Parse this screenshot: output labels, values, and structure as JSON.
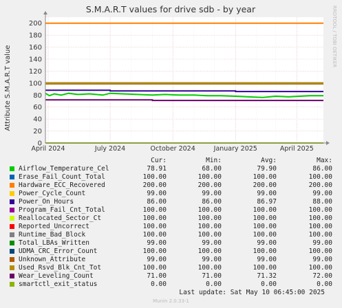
{
  "chart_data": {
    "type": "line",
    "title": "S.M.A.R.T values for drive sdb - by year",
    "ylabel": "Attribute S.M.A.R.T value",
    "side_label": "RRDTOOL / TOBI OETIKER",
    "ylim": [
      0,
      210
    ],
    "yticks": [
      0,
      20,
      40,
      60,
      80,
      100,
      120,
      140,
      160,
      180,
      200
    ],
    "xlim": [
      "2024-03-28",
      "2025-05-10"
    ],
    "xticks": [
      {
        "date": "2024-04-01",
        "label": "April 2024"
      },
      {
        "date": "2024-07-01",
        "label": "July 2024"
      },
      {
        "date": "2024-10-01",
        "label": "October 2024"
      },
      {
        "date": "2025-01-01",
        "label": "January 2025"
      },
      {
        "date": "2025-04-01",
        "label": "April 2025"
      }
    ],
    "grid": true,
    "columns": [
      "Cur:",
      "Min:",
      "Avg:",
      "Max:"
    ],
    "series": [
      {
        "name": "Airflow_Temperature_Cel",
        "color": "#00cc00",
        "stats": [
          "78.91",
          "68.00",
          "79.90",
          "86.00"
        ],
        "x": [
          "2024-03-28",
          "2024-04-03",
          "2024-04-10",
          "2024-04-20",
          "2024-05-01",
          "2024-05-15",
          "2024-06-01",
          "2024-06-20",
          "2024-07-01",
          "2024-07-20",
          "2024-08-10",
          "2024-09-01",
          "2024-09-20",
          "2024-10-10",
          "2024-11-01",
          "2024-11-20",
          "2024-12-10",
          "2025-01-01",
          "2025-01-20",
          "2025-02-10",
          "2025-03-01",
          "2025-03-20",
          "2025-04-05",
          "2025-04-20",
          "2025-05-10"
        ],
        "y": [
          83,
          79,
          82,
          80,
          83,
          81,
          82,
          80,
          83,
          82,
          81,
          80,
          81,
          80,
          80,
          79,
          79,
          78,
          77,
          76,
          78,
          77,
          78,
          79,
          79
        ]
      },
      {
        "name": "Erase_Fail_Count_Total",
        "color": "#0066b3",
        "stats": [
          "100.00",
          "100.00",
          "100.00",
          "100.00"
        ],
        "x": [
          "2024-03-28",
          "2025-05-10"
        ],
        "y": [
          100,
          100
        ]
      },
      {
        "name": "Hardware_ECC_Recovered",
        "color": "#ff8000",
        "stats": [
          "200.00",
          "200.00",
          "200.00",
          "200.00"
        ],
        "x": [
          "2024-03-28",
          "2025-05-10"
        ],
        "y": [
          200,
          200
        ]
      },
      {
        "name": "Power_Cycle_Count",
        "color": "#ffcc00",
        "stats": [
          "99.00",
          "99.00",
          "99.00",
          "99.00"
        ],
        "x": [
          "2024-03-28",
          "2025-05-10"
        ],
        "y": [
          99,
          99
        ]
      },
      {
        "name": "Power_On_Hours",
        "color": "#330099",
        "stats": [
          "86.00",
          "86.00",
          "86.97",
          "88.00"
        ],
        "x": [
          "2024-03-28",
          "2024-07-01",
          "2024-07-01",
          "2025-01-01",
          "2025-01-01",
          "2025-05-10"
        ],
        "y": [
          88,
          88,
          87,
          87,
          86,
          86
        ]
      },
      {
        "name": "Program_Fail_Cnt_Total",
        "color": "#990099",
        "stats": [
          "100.00",
          "100.00",
          "100.00",
          "100.00"
        ],
        "x": [
          "2024-03-28",
          "2025-05-10"
        ],
        "y": [
          100,
          100
        ]
      },
      {
        "name": "Reallocated_Sector_Ct",
        "color": "#ccff00",
        "stats": [
          "100.00",
          "100.00",
          "100.00",
          "100.00"
        ],
        "x": [
          "2024-03-28",
          "2025-05-10"
        ],
        "y": [
          100,
          100
        ]
      },
      {
        "name": "Reported_Uncorrect",
        "color": "#ff0000",
        "stats": [
          "100.00",
          "100.00",
          "100.00",
          "100.00"
        ],
        "x": [
          "2024-03-28",
          "2025-05-10"
        ],
        "y": [
          100,
          100
        ]
      },
      {
        "name": "Runtime_Bad_Block",
        "color": "#808080",
        "stats": [
          "100.00",
          "100.00",
          "100.00",
          "100.00"
        ],
        "x": [
          "2024-03-28",
          "2025-05-10"
        ],
        "y": [
          100,
          100
        ]
      },
      {
        "name": "Total_LBAs_Written",
        "color": "#008f00",
        "stats": [
          "99.00",
          "99.00",
          "99.00",
          "99.00"
        ],
        "x": [
          "2024-03-28",
          "2025-05-10"
        ],
        "y": [
          99,
          99
        ]
      },
      {
        "name": "UDMA_CRC_Error_Count",
        "color": "#00487d",
        "stats": [
          "100.00",
          "100.00",
          "100.00",
          "100.00"
        ],
        "x": [
          "2024-03-28",
          "2025-05-10"
        ],
        "y": [
          100,
          100
        ]
      },
      {
        "name": "Unknown_Attribute",
        "color": "#b35a00",
        "stats": [
          "99.00",
          "99.00",
          "99.00",
          "99.00"
        ],
        "x": [
          "2024-03-28",
          "2025-05-10"
        ],
        "y": [
          99,
          99
        ]
      },
      {
        "name": "Used_Rsvd_Blk_Cnt_Tot",
        "color": "#b38f00",
        "stats": [
          "100.00",
          "100.00",
          "100.00",
          "100.00"
        ],
        "x": [
          "2024-03-28",
          "2025-05-10"
        ],
        "y": [
          100,
          100
        ]
      },
      {
        "name": "Wear_Leveling_Count",
        "color": "#6b006b",
        "stats": [
          "71.00",
          "71.00",
          "71.32",
          "72.00"
        ],
        "x": [
          "2024-03-28",
          "2024-09-01",
          "2024-09-01",
          "2025-05-10"
        ],
        "y": [
          72,
          72,
          71,
          71
        ]
      },
      {
        "name": "smartctl_exit_status",
        "color": "#8fb300",
        "stats": [
          "0.00",
          "0.00",
          "0.00",
          "0.00"
        ],
        "x": [
          "2024-03-28",
          "2025-05-10"
        ],
        "y": [
          0,
          0
        ]
      }
    ]
  },
  "footer": {
    "last_update": "Last update:  Sat May 10 06:45:00 2025",
    "munin": "Munin 2.0.33-1"
  }
}
